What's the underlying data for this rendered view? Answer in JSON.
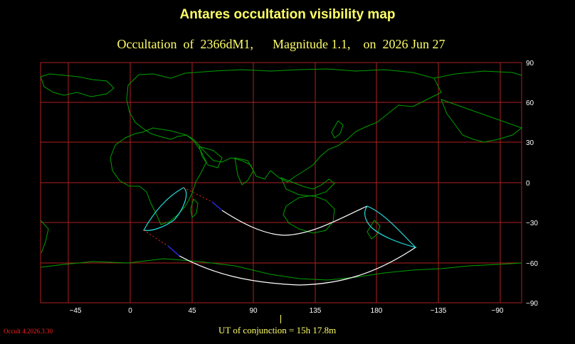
{
  "title": "Antares occultation visibility map",
  "subtitle": "Occultation  of  2366dM1,      Magnitude 1.1,    on  2026 Jun 27",
  "version": "Occult 4.2026.3.30",
  "conjunction": "UT of conjunction = 15h 17.8m",
  "map": {
    "lon_ticks": [
      "−45",
      "0",
      "45",
      "90",
      "135",
      "180",
      "−135",
      "−90"
    ],
    "lat_ticks": [
      "90",
      "60",
      "30",
      "0",
      "−30",
      "−60",
      "−90"
    ],
    "colors": {
      "grid": "#b02020",
      "coast": "#00a000",
      "limit_line": "#ffffff",
      "rise_set": "#22dddd",
      "dotted_red": "#ff2020",
      "dotted_blue": "#3030ff"
    }
  }
}
